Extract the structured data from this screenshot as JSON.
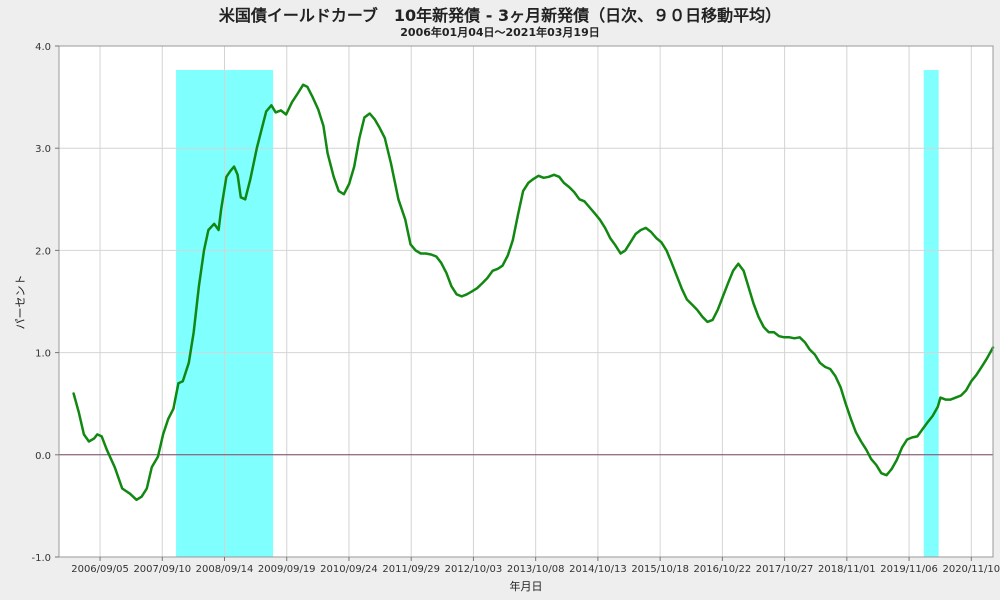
{
  "chart_data": {
    "type": "line",
    "title": "米国債イールドカーブ　10年新発債 - 3ヶ月新発債（日次、９０日移動平均）",
    "subtitle": "2006年01月04日～2021年03月19日",
    "xlabel": "年月日",
    "ylabel": "パーセント",
    "ylim": [
      -1.0,
      4.0
    ],
    "yticks": [
      -1.0,
      0.0,
      1.0,
      2.0,
      3.0,
      4.0
    ],
    "ytick_labels": [
      "-1.0",
      "0.0",
      "1.0",
      "2.0",
      "3.0",
      "4.0"
    ],
    "xlim": [
      "2006-01-04",
      "2021-03-19"
    ],
    "xtick_labels": [
      "2006/09/05",
      "2007/09/10",
      "2008/09/14",
      "2009/09/19",
      "2010/09/24",
      "2011/09/29",
      "2012/10/03",
      "2013/10/08",
      "2014/10/13",
      "2015/10/18",
      "2016/10/22",
      "2017/10/27",
      "2018/11/01",
      "2019/11/06",
      "2020/11/10"
    ],
    "grid": true,
    "line_color": "#118811",
    "shade_color": "#80ffff",
    "zero_line_color": "#7a4a6a",
    "recession_shading": [
      {
        "start": "2007-12-01",
        "end": "2009-06-30"
      },
      {
        "start": "2020-02-01",
        "end": "2020-04-30"
      }
    ],
    "series": [
      {
        "values": [
          [
            "2006-04-01",
            0.6
          ],
          [
            "2006-05-01",
            0.42
          ],
          [
            "2006-06-01",
            0.2
          ],
          [
            "2006-07-01",
            0.13
          ],
          [
            "2006-08-01",
            0.16
          ],
          [
            "2006-08-20",
            0.2
          ],
          [
            "2006-09-15",
            0.18
          ],
          [
            "2006-10-15",
            0.05
          ],
          [
            "2006-12-01",
            -0.12
          ],
          [
            "2007-01-15",
            -0.33
          ],
          [
            "2007-03-01",
            -0.38
          ],
          [
            "2007-04-10",
            -0.44
          ],
          [
            "2007-05-10",
            -0.41
          ],
          [
            "2007-06-10",
            -0.33
          ],
          [
            "2007-07-10",
            -0.12
          ],
          [
            "2007-08-15",
            -0.02
          ],
          [
            "2007-09-15",
            0.2
          ],
          [
            "2007-10-15",
            0.35
          ],
          [
            "2007-11-15",
            0.45
          ],
          [
            "2007-12-15",
            0.7
          ],
          [
            "2008-01-10",
            0.72
          ],
          [
            "2008-02-15",
            0.9
          ],
          [
            "2008-03-15",
            1.2
          ],
          [
            "2008-04-15",
            1.65
          ],
          [
            "2008-05-15",
            2.0
          ],
          [
            "2008-06-10",
            2.2
          ],
          [
            "2008-07-15",
            2.26
          ],
          [
            "2008-08-10",
            2.2
          ],
          [
            "2008-08-25",
            2.4
          ],
          [
            "2008-09-25",
            2.72
          ],
          [
            "2008-10-20",
            2.78
          ],
          [
            "2008-11-10",
            2.82
          ],
          [
            "2008-12-01",
            2.74
          ],
          [
            "2008-12-20",
            2.52
          ],
          [
            "2009-01-15",
            2.5
          ],
          [
            "2009-02-15",
            2.7
          ],
          [
            "2009-03-25",
            3.0
          ],
          [
            "2009-04-25",
            3.2
          ],
          [
            "2009-05-20",
            3.36
          ],
          [
            "2009-06-20",
            3.42
          ],
          [
            "2009-07-15",
            3.35
          ],
          [
            "2009-08-15",
            3.37
          ],
          [
            "2009-09-15",
            3.33
          ],
          [
            "2009-10-20",
            3.45
          ],
          [
            "2009-11-25",
            3.54
          ],
          [
            "2009-12-25",
            3.62
          ],
          [
            "2010-01-20",
            3.6
          ],
          [
            "2010-02-20",
            3.5
          ],
          [
            "2010-03-25",
            3.38
          ],
          [
            "2010-04-25",
            3.22
          ],
          [
            "2010-05-20",
            2.95
          ],
          [
            "2010-06-25",
            2.72
          ],
          [
            "2010-07-25",
            2.58
          ],
          [
            "2010-08-25",
            2.55
          ],
          [
            "2010-09-25",
            2.65
          ],
          [
            "2010-10-25",
            2.82
          ],
          [
            "2010-11-25",
            3.1
          ],
          [
            "2010-12-25",
            3.3
          ],
          [
            "2011-01-25",
            3.34
          ],
          [
            "2011-02-25",
            3.28
          ],
          [
            "2011-03-25",
            3.2
          ],
          [
            "2011-04-25",
            3.1
          ],
          [
            "2011-06-01",
            2.85
          ],
          [
            "2011-07-15",
            2.5
          ],
          [
            "2011-08-25",
            2.3
          ],
          [
            "2011-09-25",
            2.06
          ],
          [
            "2011-10-25",
            2.0
          ],
          [
            "2011-11-25",
            1.97
          ],
          [
            "2011-12-25",
            1.97
          ],
          [
            "2012-01-25",
            1.96
          ],
          [
            "2012-02-25",
            1.94
          ],
          [
            "2012-03-25",
            1.88
          ],
          [
            "2012-04-25",
            1.78
          ],
          [
            "2012-05-25",
            1.65
          ],
          [
            "2012-06-25",
            1.57
          ],
          [
            "2012-07-25",
            1.55
          ],
          [
            "2012-08-25",
            1.57
          ],
          [
            "2012-09-25",
            1.6
          ],
          [
            "2012-10-25",
            1.63
          ],
          [
            "2012-11-25",
            1.68
          ],
          [
            "2012-12-25",
            1.73
          ],
          [
            "2013-01-25",
            1.8
          ],
          [
            "2013-02-25",
            1.82
          ],
          [
            "2013-03-25",
            1.85
          ],
          [
            "2013-04-25",
            1.95
          ],
          [
            "2013-05-25",
            2.1
          ],
          [
            "2013-06-25",
            2.35
          ],
          [
            "2013-07-25",
            2.58
          ],
          [
            "2013-08-25",
            2.66
          ],
          [
            "2013-09-25",
            2.7
          ],
          [
            "2013-10-25",
            2.73
          ],
          [
            "2013-11-25",
            2.71
          ],
          [
            "2013-12-25",
            2.72
          ],
          [
            "2014-01-25",
            2.74
          ],
          [
            "2014-02-25",
            2.72
          ],
          [
            "2014-03-25",
            2.66
          ],
          [
            "2014-04-25",
            2.62
          ],
          [
            "2014-05-25",
            2.57
          ],
          [
            "2014-06-25",
            2.5
          ],
          [
            "2014-07-25",
            2.48
          ],
          [
            "2014-08-25",
            2.42
          ],
          [
            "2014-09-25",
            2.36
          ],
          [
            "2014-10-25",
            2.3
          ],
          [
            "2014-11-25",
            2.22
          ],
          [
            "2014-12-25",
            2.12
          ],
          [
            "2015-01-25",
            2.05
          ],
          [
            "2015-02-25",
            1.97
          ],
          [
            "2015-03-25",
            2.0
          ],
          [
            "2015-04-25",
            2.08
          ],
          [
            "2015-05-25",
            2.16
          ],
          [
            "2015-06-25",
            2.2
          ],
          [
            "2015-07-25",
            2.22
          ],
          [
            "2015-08-25",
            2.18
          ],
          [
            "2015-09-25",
            2.12
          ],
          [
            "2015-10-25",
            2.08
          ],
          [
            "2015-11-25",
            2.0
          ],
          [
            "2015-12-25",
            1.88
          ],
          [
            "2016-01-25",
            1.75
          ],
          [
            "2016-02-25",
            1.62
          ],
          [
            "2016-03-25",
            1.52
          ],
          [
            "2016-04-25",
            1.47
          ],
          [
            "2016-05-25",
            1.42
          ],
          [
            "2016-06-25",
            1.35
          ],
          [
            "2016-07-25",
            1.3
          ],
          [
            "2016-08-25",
            1.32
          ],
          [
            "2016-09-25",
            1.42
          ],
          [
            "2016-10-25",
            1.55
          ],
          [
            "2016-11-25",
            1.68
          ],
          [
            "2016-12-25",
            1.8
          ],
          [
            "2017-01-25",
            1.87
          ],
          [
            "2017-02-25",
            1.8
          ],
          [
            "2017-03-25",
            1.65
          ],
          [
            "2017-04-25",
            1.48
          ],
          [
            "2017-05-25",
            1.35
          ],
          [
            "2017-06-25",
            1.25
          ],
          [
            "2017-07-25",
            1.2
          ],
          [
            "2017-08-25",
            1.2
          ],
          [
            "2017-09-25",
            1.16
          ],
          [
            "2017-10-25",
            1.15
          ],
          [
            "2017-11-25",
            1.15
          ],
          [
            "2017-12-25",
            1.14
          ],
          [
            "2018-01-25",
            1.15
          ],
          [
            "2018-02-25",
            1.1
          ],
          [
            "2018-03-25",
            1.03
          ],
          [
            "2018-04-25",
            0.98
          ],
          [
            "2018-05-25",
            0.9
          ],
          [
            "2018-06-25",
            0.86
          ],
          [
            "2018-07-25",
            0.84
          ],
          [
            "2018-08-25",
            0.77
          ],
          [
            "2018-09-25",
            0.66
          ],
          [
            "2018-10-25",
            0.5
          ],
          [
            "2018-11-25",
            0.35
          ],
          [
            "2018-12-25",
            0.22
          ],
          [
            "2019-01-25",
            0.13
          ],
          [
            "2019-02-25",
            0.05
          ],
          [
            "2019-03-25",
            -0.04
          ],
          [
            "2019-04-25",
            -0.1
          ],
          [
            "2019-05-25",
            -0.18
          ],
          [
            "2019-06-25",
            -0.2
          ],
          [
            "2019-07-25",
            -0.14
          ],
          [
            "2019-08-25",
            -0.05
          ],
          [
            "2019-09-25",
            0.07
          ],
          [
            "2019-10-25",
            0.15
          ],
          [
            "2019-11-25",
            0.17
          ],
          [
            "2019-12-25",
            0.18
          ],
          [
            "2020-01-25",
            0.25
          ],
          [
            "2020-02-25",
            0.32
          ],
          [
            "2020-03-25",
            0.38
          ],
          [
            "2020-04-25",
            0.47
          ],
          [
            "2020-05-10",
            0.56
          ],
          [
            "2020-06-10",
            0.54
          ],
          [
            "2020-07-10",
            0.54
          ],
          [
            "2020-08-10",
            0.56
          ],
          [
            "2020-09-10",
            0.58
          ],
          [
            "2020-10-10",
            0.63
          ],
          [
            "2020-11-10",
            0.72
          ],
          [
            "2020-12-10",
            0.78
          ],
          [
            "2021-01-10",
            0.86
          ],
          [
            "2021-02-10",
            0.94
          ],
          [
            "2021-03-19",
            1.05
          ]
        ]
      }
    ]
  }
}
